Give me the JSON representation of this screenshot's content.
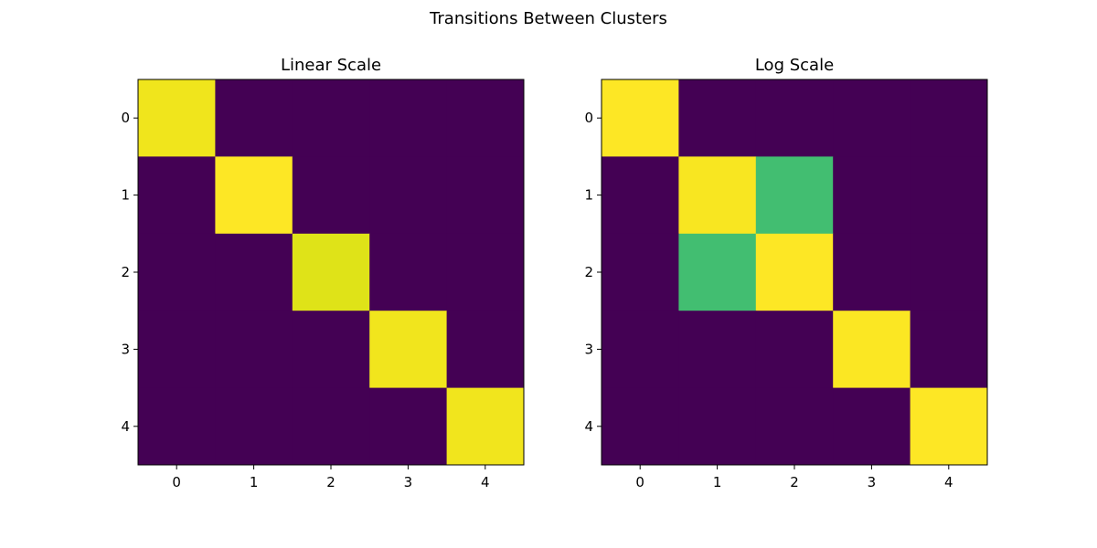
{
  "figure": {
    "title": "Transitions Between Clusters"
  },
  "chart_data": [
    {
      "type": "heatmap",
      "title": "Linear Scale",
      "xlabel": "",
      "ylabel": "",
      "x_ticks": [
        "0",
        "1",
        "2",
        "3",
        "4"
      ],
      "y_ticks": [
        "0",
        "1",
        "2",
        "3",
        "4"
      ],
      "colormap": "viridis",
      "scale": "linear",
      "vmin": 0,
      "vmax": 1,
      "values": [
        [
          0.96,
          0.0,
          0.0,
          0.0,
          0.0
        ],
        [
          0.0,
          1.0,
          0.0,
          0.0,
          0.0
        ],
        [
          0.0,
          0.0,
          0.9,
          0.0,
          0.0
        ],
        [
          0.0,
          0.0,
          0.0,
          0.97,
          0.0
        ],
        [
          0.0,
          0.0,
          0.0,
          0.0,
          0.97
        ]
      ],
      "cell_colors": [
        [
          "#f0e51c",
          "#440154",
          "#440154",
          "#440154",
          "#440154"
        ],
        [
          "#440154",
          "#fde725",
          "#440154",
          "#440154",
          "#440154"
        ],
        [
          "#440154",
          "#440154",
          "#dfe318",
          "#440154",
          "#440154"
        ],
        [
          "#440154",
          "#440154",
          "#440154",
          "#f1e51d",
          "#440154"
        ],
        [
          "#440154",
          "#440154",
          "#440154",
          "#440154",
          "#f1e51d"
        ]
      ]
    },
    {
      "type": "heatmap",
      "title": "Log Scale",
      "xlabel": "",
      "ylabel": "",
      "x_ticks": [
        "0",
        "1",
        "2",
        "3",
        "4"
      ],
      "y_ticks": [
        "0",
        "1",
        "2",
        "3",
        "4"
      ],
      "colormap": "viridis",
      "scale": "log",
      "vmin": 0,
      "vmax": 1,
      "values": [
        [
          1.0,
          0.0,
          0.0,
          0.0,
          0.0
        ],
        [
          0.0,
          0.98,
          0.72,
          0.0,
          0.0
        ],
        [
          0.0,
          0.72,
          1.0,
          0.0,
          0.0
        ],
        [
          0.0,
          0.0,
          0.0,
          0.99,
          0.0
        ],
        [
          0.0,
          0.0,
          0.0,
          0.0,
          0.99
        ]
      ],
      "cell_colors": [
        [
          "#fde725",
          "#440154",
          "#440154",
          "#440154",
          "#440154"
        ],
        [
          "#440154",
          "#f8e621",
          "#42be71",
          "#440154",
          "#440154"
        ],
        [
          "#440154",
          "#42be71",
          "#fde725",
          "#440154",
          "#440154"
        ],
        [
          "#440154",
          "#440154",
          "#440154",
          "#fbe723",
          "#440154"
        ],
        [
          "#440154",
          "#440154",
          "#440154",
          "#440154",
          "#fde725"
        ]
      ]
    }
  ]
}
